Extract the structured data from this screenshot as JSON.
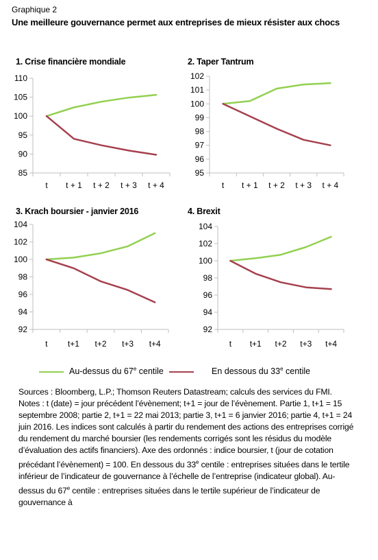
{
  "figure": {
    "label": "Graphique 2",
    "title": "Une meilleure gouvernance permet aux entreprises de mieux résister aux chocs"
  },
  "colors": {
    "above": "#92d050",
    "below": "#a5404e",
    "axis": "#bfbfbf"
  },
  "legend": {
    "above": {
      "text": "Au-dessus du 67",
      "sup": "e",
      "suffix": " centile"
    },
    "below": {
      "text": "En dessous du 33",
      "sup": "e",
      "suffix": " centile"
    }
  },
  "chart_data": [
    {
      "type": "line",
      "title": "1. Crise financière mondiale",
      "categories": [
        "t",
        "t + 1",
        "t + 2",
        "t + 3",
        "t + 4"
      ],
      "ylim": [
        85,
        110
      ],
      "yticks": [
        85,
        90,
        95,
        100,
        105,
        110
      ],
      "series": [
        {
          "name": "Au-dessus du 67e centile",
          "values": [
            100,
            102.3,
            103.8,
            104.9,
            105.6
          ]
        },
        {
          "name": "En dessous du 33e centile",
          "values": [
            100,
            94.0,
            92.3,
            90.9,
            89.8
          ]
        }
      ]
    },
    {
      "type": "line",
      "title": "2. Taper Tantrum",
      "categories": [
        "t",
        "t + 1",
        "t + 2",
        "t + 3",
        "t + 4"
      ],
      "ylim": [
        95,
        102
      ],
      "yticks": [
        95,
        96,
        97,
        98,
        99,
        100,
        101,
        102
      ],
      "series": [
        {
          "name": "Au-dessus du 67e centile",
          "values": [
            100,
            100.2,
            101.1,
            101.4,
            101.5
          ]
        },
        {
          "name": "En dessous du 33e centile",
          "values": [
            100,
            99.1,
            98.2,
            97.4,
            97.0
          ]
        }
      ]
    },
    {
      "type": "line",
      "title": "3. Krach boursier - janvier 2016",
      "categories": [
        "t",
        "t+1",
        "t+2",
        "t+3",
        "t+4"
      ],
      "ylim": [
        92,
        104
      ],
      "yticks": [
        92,
        94,
        96,
        98,
        100,
        102,
        104
      ],
      "series": [
        {
          "name": "Au-dessus du 67e centile",
          "values": [
            100,
            100.2,
            100.7,
            101.5,
            103.0
          ]
        },
        {
          "name": "En dessous du 33e centile",
          "values": [
            100,
            99.0,
            97.5,
            96.5,
            95.1
          ]
        }
      ]
    },
    {
      "type": "line",
      "title": "4. Brexit",
      "categories": [
        "t",
        "t+1",
        "t+2",
        "t+3",
        "t+4"
      ],
      "ylim": [
        92,
        104
      ],
      "yticks": [
        92,
        94,
        96,
        98,
        100,
        102,
        104
      ],
      "series": [
        {
          "name": "Au-dessus du 67e centile",
          "values": [
            100,
            100.3,
            100.7,
            101.6,
            102.8
          ]
        },
        {
          "name": "En dessous du 33e centile",
          "values": [
            100,
            98.5,
            97.5,
            96.9,
            96.7
          ]
        }
      ]
    }
  ],
  "notes": {
    "sources": "Sources : Bloomberg, L.P.; Thomson Reuters Datastream; calculs des services du FMI.",
    "line1": "Notes : t (date) = jour précédent l’évènement; t+1 = jour de l’évènement. Partie 1, t+1 = 15 septembre 2008; partie 2, t+1 = 22 mai 2013;  partie 3, t+1 = 6 janvier 2016;  partie 4, t+1 = 24 juin 2016.  Les indices sont calculés à partir du rendement des actions des entreprises corrigé du rendement du marché boursier (les rendements corrigés sont les résidus du modèle d’évaluation des actifs financiers). Axe des ordonnés : indice boursier, t (jour de cotation précédant l’évènement) = 100. En dessous du 33",
    "sup1": "e",
    "line2": " centile : entreprises situées dans le tertile inférieur de l’indicateur de gouvernance à l’échelle de l’entreprise (indicateur global). Au-dessus du 67",
    "sup2": "e",
    "line3": " centile : entreprises situées dans le tertile supérieur de l’indicateur de gouvernance à"
  }
}
